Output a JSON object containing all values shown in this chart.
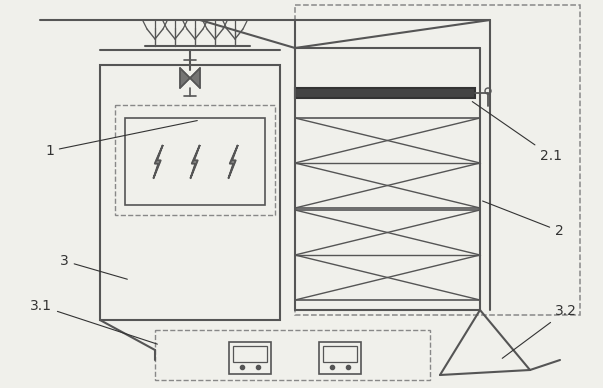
{
  "bg_color": "#f0f0eb",
  "line_color": "#555555",
  "dashed_color": "#888888",
  "text_color": "#333333",
  "fig_w": 6.03,
  "fig_h": 3.88
}
